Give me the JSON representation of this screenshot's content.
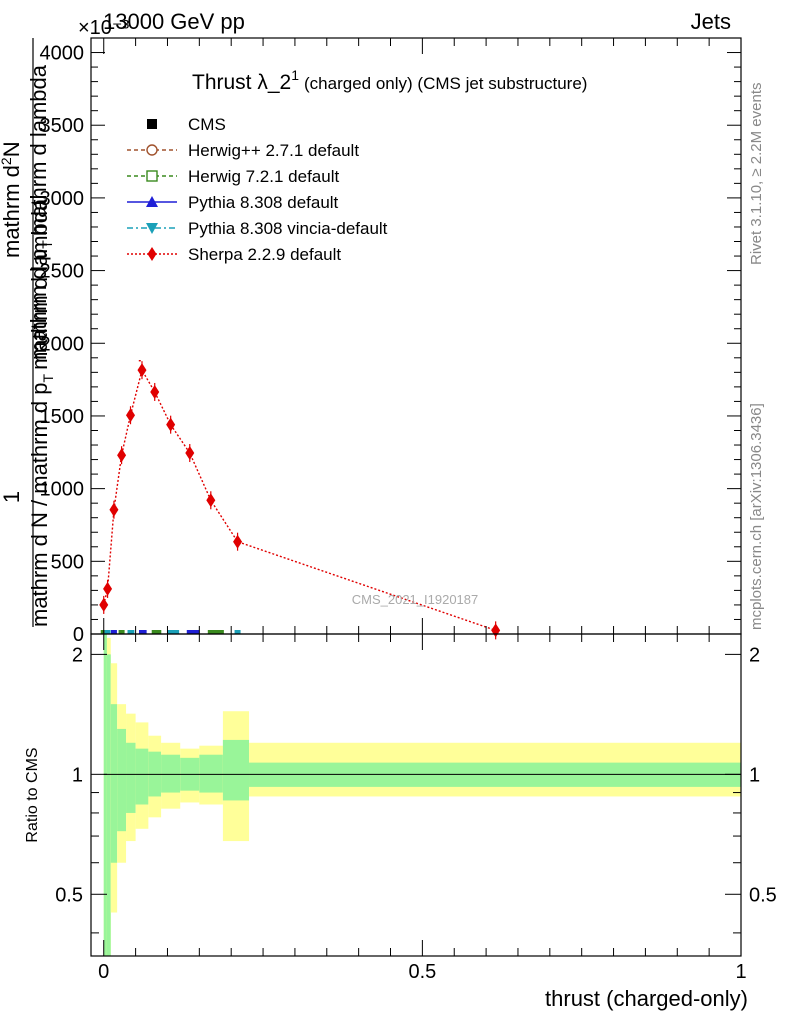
{
  "header": {
    "left": "13000 GeV pp",
    "right": "Jets",
    "exponent": "×10⁻³"
  },
  "side": {
    "rivet": "Rivet 3.1.10, ≥ 2.2M events",
    "mcplots": "mcplots.cern.ch [arXiv:1306.3436]"
  },
  "watermark": "CMS_2021_I1920187",
  "chart_data": [
    {
      "type": "line",
      "title": "Thrust λ_2¹ (charged only) (CMS jet substructure)",
      "title_main": "Thrust λ_2",
      "title_sup": "1",
      "title_rest": "(charged only) (CMS jet substructure)",
      "xlabel": "thrust (charged-only)",
      "ylabel_parts": [
        "1",
        "mathrm d N / mathrm d p_T mathrm d lambda",
        "mathrm d²N",
        "mathrm d p_T mathrm d lambda"
      ],
      "ylabel_line1": "1",
      "ylabel_line2": "mathrm d N / mathrm d p",
      "ylabel_line2_sub": "T",
      "ylabel_line2_tail": "mathrm d lambda",
      "ylabel_line3": "mathrm d",
      "ylabel_line3_sup": "2",
      "ylabel_line3_tail": "N",
      "ylabel_line4": "mathrm d p",
      "ylabel_line4_sub": "T",
      "ylabel_line4_tail": "mathrm d lambda",
      "xlim": [
        -0.02,
        1.0
      ],
      "ylim": [
        0,
        4100
      ],
      "yticks": [
        0,
        500,
        1000,
        1500,
        2000,
        2500,
        3000,
        3500,
        4000
      ],
      "ytick_labels": [
        "0",
        "500",
        "1000",
        "1500",
        "2000",
        "2500",
        "3000",
        "3500",
        "4000"
      ],
      "legend_position": "top-left",
      "legend": [
        {
          "label": "CMS",
          "color": "#000000",
          "marker": "square-filled",
          "line": "none"
        },
        {
          "label": "Herwig++ 2.7.1 default",
          "color": "#a0522d",
          "marker": "circle-open",
          "line": "dashed"
        },
        {
          "label": "Herwig 7.2.1 default",
          "color": "#3a8a1e",
          "marker": "square-open",
          "line": "dashed"
        },
        {
          "label": "Pythia 8.308 default",
          "color": "#1f1fd6",
          "marker": "triangle-up",
          "line": "solid"
        },
        {
          "label": "Pythia 8.308 vincia-default",
          "color": "#1aa0b8",
          "marker": "triangle-down",
          "line": "dashdot"
        },
        {
          "label": "Sherpa 2.2.9 default",
          "color": "#e00000",
          "marker": "diamond",
          "line": "dotted"
        }
      ],
      "series": [
        {
          "name": "Sherpa 2.2.9 default",
          "color": "#e00000",
          "x": [
            0.0,
            0.006,
            0.016,
            0.028,
            0.042,
            0.06,
            0.08,
            0.105,
            0.135,
            0.168,
            0.21,
            0.615
          ],
          "y": [
            200,
            310,
            855,
            1230,
            1505,
            1815,
            1665,
            1440,
            1245,
            920,
            635,
            25
          ]
        },
        {
          "name": "CMS",
          "color": "#000000",
          "x": [
            0.0,
            0.006,
            0.016,
            0.028,
            0.042,
            0.06,
            0.08,
            0.105,
            0.135,
            0.168,
            0.21
          ],
          "y": [
            0,
            0,
            0,
            0,
            0,
            0,
            0,
            0,
            0,
            0,
            0
          ]
        }
      ],
      "peak_line": {
        "x": [
          0.055,
          0.06
        ],
        "y": [
          1880,
          1880
        ]
      }
    },
    {
      "type": "area",
      "ylabel": "Ratio to CMS",
      "xlabel": "thrust (charged-only)",
      "xlim": [
        -0.02,
        1.0
      ],
      "ylim": [
        0.35,
        2.25
      ],
      "yticks": [
        0.5,
        1,
        2
      ],
      "ytick_labels": [
        "0.5",
        "1",
        "2"
      ],
      "xticks": [
        0,
        0.5,
        1
      ],
      "xtick_labels": [
        "0",
        "0.5",
        "1"
      ],
      "bands": [
        {
          "x0": 0.0,
          "x1": 0.005,
          "stat": [
            0.35,
            2.25
          ],
          "total": [
            0.35,
            2.25
          ]
        },
        {
          "x0": 0.005,
          "x1": 0.011,
          "stat": [
            0.35,
            2.0
          ],
          "total": [
            0.35,
            2.2
          ]
        },
        {
          "x0": 0.011,
          "x1": 0.021,
          "stat": [
            0.6,
            1.5
          ],
          "total": [
            0.45,
            1.9
          ]
        },
        {
          "x0": 0.021,
          "x1": 0.035,
          "stat": [
            0.72,
            1.3
          ],
          "total": [
            0.6,
            1.5
          ]
        },
        {
          "x0": 0.035,
          "x1": 0.05,
          "stat": [
            0.8,
            1.2
          ],
          "total": [
            0.68,
            1.42
          ]
        },
        {
          "x0": 0.05,
          "x1": 0.07,
          "stat": [
            0.84,
            1.16
          ],
          "total": [
            0.73,
            1.35
          ]
        },
        {
          "x0": 0.07,
          "x1": 0.09,
          "stat": [
            0.88,
            1.14
          ],
          "total": [
            0.78,
            1.25
          ]
        },
        {
          "x0": 0.09,
          "x1": 0.12,
          "stat": [
            0.9,
            1.12
          ],
          "total": [
            0.82,
            1.2
          ]
        },
        {
          "x0": 0.12,
          "x1": 0.15,
          "stat": [
            0.91,
            1.1
          ],
          "total": [
            0.85,
            1.16
          ]
        },
        {
          "x0": 0.15,
          "x1": 0.187,
          "stat": [
            0.9,
            1.12
          ],
          "total": [
            0.84,
            1.18
          ]
        },
        {
          "x0": 0.187,
          "x1": 0.228,
          "stat": [
            0.86,
            1.22
          ],
          "total": [
            0.68,
            1.44
          ]
        },
        {
          "x0": 0.228,
          "x1": 1.0,
          "stat": [
            0.93,
            1.07
          ],
          "total": [
            0.88,
            1.2
          ]
        }
      ]
    }
  ]
}
